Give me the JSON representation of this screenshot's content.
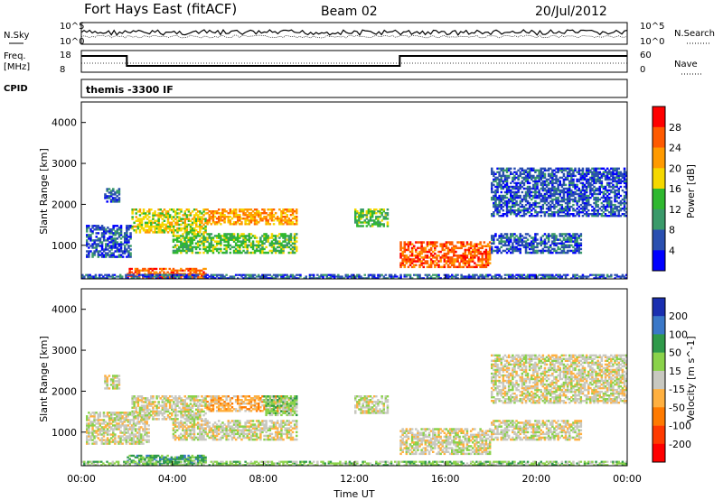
{
  "header": {
    "radar": "Fort Hays East (fitACF)",
    "beam": "Beam 02",
    "date": "20/Jul/2012"
  },
  "summary": {
    "nsky_label": "N.Sky",
    "nsearch_label": "N.Search",
    "freq_label_1": "Freq.",
    "freq_label_2": "[MHz]",
    "nave_label": "Nave",
    "cpid_label": "CPID",
    "cpid_text": "themis -3300 IF",
    "noise_ticks": [
      "10^5",
      "10^0"
    ],
    "noise_ticks_right": [
      "10^5",
      "10^0"
    ],
    "freq_ticks": [
      "18",
      "8"
    ],
    "nave_ticks": [
      "60",
      "0"
    ]
  },
  "chart_data": [
    {
      "type": "heatmap",
      "title": "Power",
      "ylabel": "Slant Range [km]",
      "yticks": [
        "4000",
        "3000",
        "2000",
        "1000"
      ],
      "ylim": [
        180,
        4500
      ],
      "xlim_hours": [
        0,
        24
      ],
      "colorbar": {
        "label": "Power [dB]",
        "ticks": [
          "28",
          "24",
          "20",
          "16",
          "12",
          "8",
          "4"
        ],
        "colors": [
          "#ff0000",
          "#ff5a00",
          "#ff9a00",
          "#f5d800",
          "#2fb82f",
          "#3a9a6a",
          "#2a4fb0",
          "#0000ff"
        ]
      },
      "echo_regions": [
        {
          "t0": 0.2,
          "t1": 2.2,
          "r0": 700,
          "r1": 1500,
          "level": 1
        },
        {
          "t0": 2.2,
          "t1": 5.5,
          "r0": 1300,
          "r1": 1900,
          "level": 4
        },
        {
          "t0": 4.0,
          "t1": 9.5,
          "r0": 800,
          "r1": 1300,
          "level": 3
        },
        {
          "t0": 5.5,
          "t1": 9.5,
          "r0": 1500,
          "r1": 1900,
          "level": 5
        },
        {
          "t0": 2.0,
          "t1": 5.5,
          "r0": 200,
          "r1": 450,
          "level": 6
        },
        {
          "t0": 12.0,
          "t1": 13.5,
          "r0": 1450,
          "r1": 1900,
          "level": 3
        },
        {
          "t0": 14.0,
          "t1": 18.0,
          "r0": 450,
          "r1": 1100,
          "level": 6
        },
        {
          "t0": 1.0,
          "t1": 1.7,
          "r0": 2050,
          "r1": 2400,
          "level": 1
        },
        {
          "t0": 18.0,
          "t1": 22.0,
          "r0": 800,
          "r1": 1300,
          "level": 1
        },
        {
          "t0": 18.0,
          "t1": 24.0,
          "r0": 1700,
          "r1": 2900,
          "level": 1
        },
        {
          "t0": 0,
          "t1": 24,
          "r0": 180,
          "r1": 300,
          "level": 1
        }
      ]
    },
    {
      "type": "heatmap",
      "title": "Velocity",
      "ylabel": "Slant Range [km]",
      "xlabel": "Time UT",
      "yticks": [
        "4000",
        "3000",
        "2000",
        "1000"
      ],
      "xticks": [
        "00:00",
        "04:00",
        "08:00",
        "12:00",
        "16:00",
        "20:00",
        "00:00"
      ],
      "ylim": [
        180,
        4500
      ],
      "xlim_hours": [
        0,
        24
      ],
      "colorbar": {
        "label": "Velocity [m s^-1]",
        "ticks": [
          "200",
          "100",
          "50",
          "15",
          "-15",
          "-50",
          "-100",
          "-200"
        ],
        "colors": [
          "#1a2fb0",
          "#3a78c8",
          "#2f9a4a",
          "#8ad24a",
          "#c8c8c0",
          "#ffb040",
          "#ff7a00",
          "#ff3a00",
          "#ff0000"
        ]
      },
      "echo_regions": [
        {
          "t0": 0.2,
          "t1": 3.0,
          "r0": 700,
          "r1": 1500,
          "level": 4
        },
        {
          "t0": 2.2,
          "t1": 5.5,
          "r0": 1300,
          "r1": 1900,
          "level": 4
        },
        {
          "t0": 4.0,
          "t1": 9.5,
          "r0": 800,
          "r1": 1300,
          "level": 4
        },
        {
          "t0": 5.5,
          "t1": 9.5,
          "r0": 1500,
          "r1": 1900,
          "level": 3
        },
        {
          "t0": 8.0,
          "t1": 9.5,
          "r0": 1400,
          "r1": 1900,
          "level": 5
        },
        {
          "t0": 2.0,
          "t1": 5.5,
          "r0": 200,
          "r1": 450,
          "level": 6
        },
        {
          "t0": 12.0,
          "t1": 13.5,
          "r0": 1450,
          "r1": 1900,
          "level": 4
        },
        {
          "t0": 14.0,
          "t1": 18.0,
          "r0": 450,
          "r1": 1100,
          "level": 4
        },
        {
          "t0": 1.0,
          "t1": 1.7,
          "r0": 2050,
          "r1": 2400,
          "level": 4
        },
        {
          "t0": 18.0,
          "t1": 22.0,
          "r0": 800,
          "r1": 1300,
          "level": 4
        },
        {
          "t0": 18.0,
          "t1": 24.0,
          "r0": 1700,
          "r1": 2900,
          "level": 4
        },
        {
          "t0": 0,
          "t1": 24,
          "r0": 180,
          "r1": 300,
          "level": 5
        }
      ]
    }
  ]
}
